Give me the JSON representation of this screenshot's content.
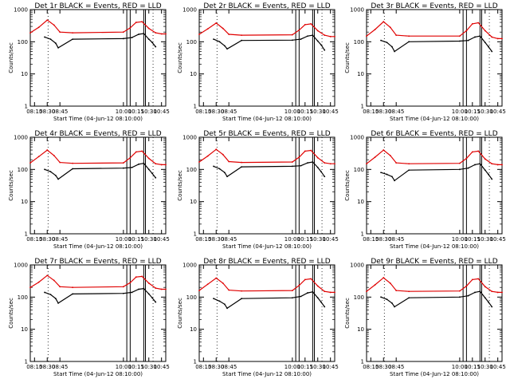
{
  "colors": {
    "events": "#000000",
    "lld": "#e00000",
    "background": "#ffffff",
    "axes": "#000000"
  },
  "chart_data": [
    {
      "type": "line",
      "panel": 1,
      "title": "Det 1r BLACK = Events, RED = LLD",
      "xlabel": "Start Time (04-Jun-12 08:10:00)",
      "ylabel": "Counts/sec",
      "xlim": [
        "08:10",
        "10:50"
      ],
      "ylim": [
        1,
        1000
      ],
      "yscale": "log",
      "x_ticks": [
        "08:15",
        "08:30",
        "08:45",
        "10:00",
        "10:15",
        "10:30",
        "10:45"
      ],
      "y_ticks": [
        "1",
        "10",
        "100",
        "1000"
      ],
      "vertical_dotted_lines": [
        "08:31",
        "10:35"
      ],
      "attenuator_gaps": [
        [
          "10:04",
          "10:08"
        ],
        [
          "10:24",
          "10:26"
        ]
      ],
      "series": [
        {
          "name": "LLD",
          "color": "red",
          "x": [
            "08:10",
            "08:20",
            "08:30",
            "08:38",
            "08:45",
            "09:00",
            "10:00",
            "10:08",
            "10:15",
            "10:22",
            "10:30",
            "10:38",
            "10:45",
            "10:50"
          ],
          "values": [
            190,
            280,
            470,
            330,
            200,
            190,
            200,
            270,
            400,
            420,
            260,
            190,
            175,
            175
          ]
        },
        {
          "name": "Events",
          "color": "black",
          "x": [
            "08:27",
            "08:34",
            "08:40",
            "08:43",
            "09:00",
            "10:00",
            "10:10",
            "10:18",
            "10:24",
            "10:30",
            "10:34",
            "10:38"
          ],
          "values": [
            140,
            120,
            90,
            65,
            120,
            125,
            135,
            170,
            180,
            120,
            95,
            70
          ]
        }
      ]
    },
    {
      "type": "line",
      "panel": 2,
      "title": "Det 2r BLACK = Events, RED = LLD",
      "xlabel": "Start Time (04-Jun-12 08:10:00)",
      "ylabel": "Counts/sec",
      "xlim": [
        "08:10",
        "10:50"
      ],
      "ylim": [
        1,
        1000
      ],
      "yscale": "log",
      "x_ticks": [
        "08:15",
        "08:30",
        "08:45",
        "10:00",
        "10:15",
        "10:30",
        "10:45"
      ],
      "y_ticks": [
        "1",
        "10",
        "100",
        "1000"
      ],
      "vertical_dotted_lines": [
        "08:31",
        "10:35"
      ],
      "attenuator_gaps": [
        [
          "10:04",
          "10:08"
        ],
        [
          "10:24",
          "10:26"
        ]
      ],
      "series": [
        {
          "name": "LLD",
          "color": "red",
          "x": [
            "08:10",
            "08:20",
            "08:30",
            "08:38",
            "08:45",
            "09:00",
            "10:00",
            "10:08",
            "10:15",
            "10:22",
            "10:30",
            "10:38",
            "10:45",
            "10:50"
          ],
          "values": [
            170,
            250,
            380,
            260,
            170,
            160,
            165,
            230,
            340,
            360,
            220,
            160,
            145,
            145
          ]
        },
        {
          "name": "Events",
          "color": "black",
          "x": [
            "08:27",
            "08:34",
            "08:40",
            "08:43",
            "09:00",
            "10:00",
            "10:10",
            "10:18",
            "10:24",
            "10:30",
            "10:34",
            "10:38"
          ],
          "values": [
            120,
            100,
            75,
            60,
            110,
            112,
            120,
            150,
            160,
            105,
            80,
            55
          ]
        }
      ]
    },
    {
      "type": "line",
      "panel": 3,
      "title": "Det 3r BLACK = Events, RED = LLD",
      "xlabel": "Start Time (04-Jun-12 08:10:00)",
      "ylabel": "Counts/sec",
      "xlim": [
        "08:10",
        "10:50"
      ],
      "ylim": [
        1,
        1000
      ],
      "yscale": "log",
      "x_ticks": [
        "08:15",
        "08:30",
        "08:45",
        "10:00",
        "10:15",
        "10:30",
        "10:45"
      ],
      "y_ticks": [
        "1",
        "10",
        "100",
        "1000"
      ],
      "vertical_dotted_lines": [
        "08:31",
        "10:35"
      ],
      "attenuator_gaps": [
        [
          "10:04",
          "10:08"
        ],
        [
          "10:24",
          "10:26"
        ]
      ],
      "series": [
        {
          "name": "LLD",
          "color": "red",
          "x": [
            "08:10",
            "08:20",
            "08:30",
            "08:38",
            "08:45",
            "09:00",
            "10:00",
            "10:08",
            "10:15",
            "10:22",
            "10:30",
            "10:38",
            "10:45",
            "10:50"
          ],
          "values": [
            150,
            240,
            420,
            280,
            160,
            150,
            150,
            220,
            360,
            390,
            220,
            140,
            125,
            125
          ]
        },
        {
          "name": "Events",
          "color": "black",
          "x": [
            "08:27",
            "08:34",
            "08:40",
            "08:43",
            "09:00",
            "10:00",
            "10:10",
            "10:18",
            "10:24",
            "10:30",
            "10:34",
            "10:38"
          ],
          "values": [
            110,
            95,
            70,
            50,
            100,
            105,
            110,
            140,
            150,
            95,
            70,
            50
          ]
        }
      ]
    },
    {
      "type": "line",
      "panel": 4,
      "title": "Det 4r BLACK = Events, RED = LLD",
      "xlabel": "Start Time (04-Jun-12 08:10:00)",
      "ylabel": "Counts/sec",
      "xlim": [
        "08:10",
        "10:50"
      ],
      "ylim": [
        1,
        1000
      ],
      "yscale": "log",
      "x_ticks": [
        "08:15",
        "08:30",
        "08:45",
        "10:00",
        "10:15",
        "10:30",
        "10:45"
      ],
      "y_ticks": [
        "1",
        "10",
        "100",
        "1000"
      ],
      "vertical_dotted_lines": [
        "08:31",
        "10:35"
      ],
      "attenuator_gaps": [
        [
          "10:04",
          "10:08"
        ],
        [
          "10:24",
          "10:26"
        ]
      ],
      "series": [
        {
          "name": "LLD",
          "color": "red",
          "x": [
            "08:10",
            "08:20",
            "08:30",
            "08:38",
            "08:45",
            "09:00",
            "10:00",
            "10:08",
            "10:15",
            "10:22",
            "10:30",
            "10:38",
            "10:45",
            "10:50"
          ],
          "values": [
            160,
            250,
            400,
            270,
            165,
            155,
            160,
            230,
            350,
            370,
            220,
            150,
            140,
            140
          ]
        },
        {
          "name": "Events",
          "color": "black",
          "x": [
            "08:27",
            "08:34",
            "08:40",
            "08:43",
            "09:00",
            "10:00",
            "10:10",
            "10:18",
            "10:24",
            "10:30",
            "10:34",
            "10:38"
          ],
          "values": [
            100,
            85,
            65,
            50,
            105,
            110,
            115,
            145,
            155,
            100,
            75,
            55
          ]
        }
      ]
    },
    {
      "type": "line",
      "panel": 5,
      "title": "Det 5r BLACK = Events, RED = LLD",
      "xlabel": "Start Time (04-Jun-12 08:10:00)",
      "ylabel": "Counts/sec",
      "xlim": [
        "08:10",
        "10:50"
      ],
      "ylim": [
        1,
        1000
      ],
      "yscale": "log",
      "x_ticks": [
        "08:15",
        "08:30",
        "08:45",
        "10:00",
        "10:15",
        "10:30",
        "10:45"
      ],
      "y_ticks": [
        "1",
        "10",
        "100",
        "1000"
      ],
      "vertical_dotted_lines": [
        "08:31",
        "10:35"
      ],
      "attenuator_gaps": [
        [
          "10:04",
          "10:08"
        ],
        [
          "10:24",
          "10:26"
        ]
      ],
      "series": [
        {
          "name": "LLD",
          "color": "red",
          "x": [
            "08:10",
            "08:20",
            "08:30",
            "08:38",
            "08:45",
            "09:00",
            "10:00",
            "10:08",
            "10:15",
            "10:22",
            "10:30",
            "10:38",
            "10:45",
            "10:50"
          ],
          "values": [
            170,
            260,
            420,
            290,
            175,
            165,
            170,
            240,
            370,
            390,
            230,
            160,
            150,
            150
          ]
        },
        {
          "name": "Events",
          "color": "black",
          "x": [
            "08:27",
            "08:34",
            "08:40",
            "08:43",
            "09:00",
            "10:00",
            "10:10",
            "10:18",
            "10:24",
            "10:30",
            "10:34",
            "10:38"
          ],
          "values": [
            125,
            105,
            80,
            60,
            120,
            125,
            130,
            160,
            170,
            115,
            85,
            60
          ]
        }
      ]
    },
    {
      "type": "line",
      "panel": 6,
      "title": "Det 6r BLACK = Events, RED = LLD",
      "xlabel": "Start Time (04-Jun-12 08:10:00)",
      "ylabel": "Counts/sec",
      "xlim": [
        "08:10",
        "10:50"
      ],
      "ylim": [
        1,
        1000
      ],
      "yscale": "log",
      "x_ticks": [
        "08:15",
        "08:30",
        "08:45",
        "10:00",
        "10:15",
        "10:30",
        "10:45"
      ],
      "y_ticks": [
        "1",
        "10",
        "100",
        "1000"
      ],
      "vertical_dotted_lines": [
        "08:31",
        "10:35"
      ],
      "attenuator_gaps": [
        [
          "10:04",
          "10:08"
        ],
        [
          "10:24",
          "10:26"
        ]
      ],
      "series": [
        {
          "name": "LLD",
          "color": "red",
          "x": [
            "08:10",
            "08:20",
            "08:30",
            "08:38",
            "08:45",
            "09:00",
            "10:00",
            "10:08",
            "10:15",
            "10:22",
            "10:30",
            "10:38",
            "10:45",
            "10:50"
          ],
          "values": [
            150,
            240,
            400,
            270,
            160,
            150,
            155,
            220,
            350,
            370,
            210,
            150,
            140,
            140
          ]
        },
        {
          "name": "Events",
          "color": "black",
          "x": [
            "08:27",
            "08:34",
            "08:40",
            "08:43",
            "09:00",
            "10:00",
            "10:10",
            "10:18",
            "10:24",
            "10:30",
            "10:34",
            "10:38"
          ],
          "values": [
            80,
            70,
            60,
            45,
            95,
            100,
            110,
            140,
            150,
            95,
            70,
            50
          ]
        }
      ]
    },
    {
      "type": "line",
      "panel": 7,
      "title": "Det 7r BLACK = Events, RED = LLD",
      "xlabel": "Start Time (04-Jun-12 08:10:00)",
      "ylabel": "Counts/sec",
      "xlim": [
        "08:10",
        "10:50"
      ],
      "ylim": [
        1,
        1000
      ],
      "yscale": "log",
      "x_ticks": [
        "08:15",
        "08:30",
        "08:45",
        "10:00",
        "10:15",
        "10:30",
        "10:45"
      ],
      "y_ticks": [
        "1",
        "10",
        "100",
        "1000"
      ],
      "vertical_dotted_lines": [
        "08:31",
        "10:35"
      ],
      "attenuator_gaps": [
        [
          "10:04",
          "10:08"
        ],
        [
          "10:24",
          "10:26"
        ]
      ],
      "series": [
        {
          "name": "LLD",
          "color": "red",
          "x": [
            "08:10",
            "08:20",
            "08:30",
            "08:38",
            "08:45",
            "09:00",
            "10:00",
            "10:08",
            "10:15",
            "10:22",
            "10:30",
            "10:38",
            "10:45",
            "10:50"
          ],
          "values": [
            200,
            290,
            470,
            330,
            210,
            200,
            210,
            280,
            420,
            440,
            270,
            190,
            175,
            175
          ]
        },
        {
          "name": "Events",
          "color": "black",
          "x": [
            "08:27",
            "08:34",
            "08:40",
            "08:43",
            "09:00",
            "10:00",
            "10:10",
            "10:18",
            "10:24",
            "10:30",
            "10:34",
            "10:38"
          ],
          "values": [
            140,
            120,
            90,
            65,
            125,
            130,
            140,
            175,
            185,
            125,
            95,
            70
          ]
        }
      ]
    },
    {
      "type": "line",
      "panel": 8,
      "title": "Det 8r BLACK = Events, RED = LLD",
      "xlabel": "Start Time (04-Jun-12 08:10:00)",
      "ylabel": "Counts/sec",
      "xlim": [
        "08:10",
        "10:50"
      ],
      "ylim": [
        1,
        1000
      ],
      "yscale": "log",
      "x_ticks": [
        "08:15",
        "08:30",
        "08:45",
        "10:00",
        "10:15",
        "10:30",
        "10:45"
      ],
      "y_ticks": [
        "1",
        "10",
        "100",
        "1000"
      ],
      "vertical_dotted_lines": [
        "08:31",
        "10:35"
      ],
      "attenuator_gaps": [
        [
          "10:04",
          "10:08"
        ],
        [
          "10:24",
          "10:26"
        ]
      ],
      "series": [
        {
          "name": "LLD",
          "color": "red",
          "x": [
            "08:10",
            "08:20",
            "08:30",
            "08:38",
            "08:45",
            "09:00",
            "10:00",
            "10:08",
            "10:15",
            "10:22",
            "10:30",
            "10:38",
            "10:45",
            "10:50"
          ],
          "values": [
            160,
            250,
            390,
            270,
            165,
            155,
            160,
            230,
            350,
            370,
            220,
            150,
            140,
            140
          ]
        },
        {
          "name": "Events",
          "color": "black",
          "x": [
            "08:27",
            "08:34",
            "08:40",
            "08:43",
            "09:00",
            "10:00",
            "10:10",
            "10:18",
            "10:24",
            "10:30",
            "10:34",
            "10:38"
          ],
          "values": [
            90,
            75,
            60,
            45,
            90,
            95,
            105,
            135,
            145,
            95,
            70,
            50
          ]
        }
      ]
    },
    {
      "type": "line",
      "panel": 9,
      "title": "Det 9r BLACK = Events, RED = LLD",
      "xlabel": "Start Time (04-Jun-12 08:10:00)",
      "ylabel": "Counts/sec",
      "xlim": [
        "08:10",
        "10:50"
      ],
      "ylim": [
        1,
        1000
      ],
      "yscale": "log",
      "x_ticks": [
        "08:15",
        "08:30",
        "08:45",
        "10:00",
        "10:15",
        "10:30",
        "10:45"
      ],
      "y_ticks": [
        "1",
        "10",
        "100",
        "1000"
      ],
      "vertical_dotted_lines": [
        "08:31",
        "10:35"
      ],
      "attenuator_gaps": [
        [
          "10:04",
          "10:08"
        ],
        [
          "10:24",
          "10:26"
        ]
      ],
      "series": [
        {
          "name": "LLD",
          "color": "red",
          "x": [
            "08:10",
            "08:20",
            "08:30",
            "08:38",
            "08:45",
            "09:00",
            "10:00",
            "10:08",
            "10:15",
            "10:22",
            "10:30",
            "10:38",
            "10:45",
            "10:50"
          ],
          "values": [
            150,
            240,
            400,
            270,
            160,
            150,
            155,
            220,
            350,
            370,
            210,
            150,
            140,
            140
          ]
        },
        {
          "name": "Events",
          "color": "black",
          "x": [
            "08:27",
            "08:34",
            "08:40",
            "08:43",
            "09:00",
            "10:00",
            "10:10",
            "10:18",
            "10:24",
            "10:30",
            "10:34",
            "10:38"
          ],
          "values": [
            100,
            85,
            65,
            50,
            95,
            100,
            110,
            140,
            150,
            95,
            70,
            50
          ]
        }
      ]
    }
  ]
}
